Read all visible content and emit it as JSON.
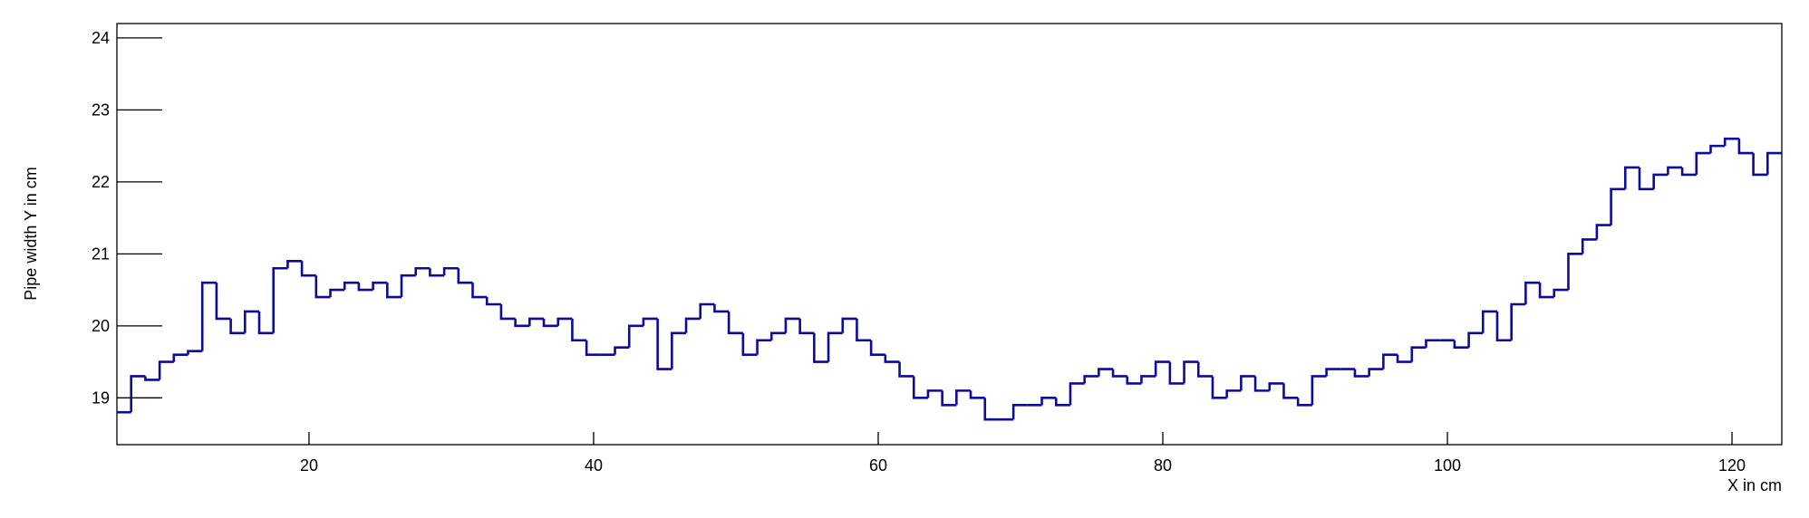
{
  "chart_data": {
    "type": "histogram",
    "xlabel": "X in cm",
    "ylabel": "Pipe width Y in cm",
    "color": "#0c0c9c",
    "xlim": [
      6.5,
      123.5
    ],
    "ylim": [
      18.35,
      24.2
    ],
    "xticks": [
      20,
      40,
      60,
      80,
      100,
      120
    ],
    "yticks": [
      19,
      20,
      21,
      22,
      23,
      24
    ],
    "bins": [
      6.5,
      7.5,
      8.5,
      9.5,
      10.5,
      11.5,
      12.5,
      13.5,
      14.5,
      15.5,
      16.5,
      17.5,
      18.5,
      19.5,
      20.5,
      21.5,
      22.5,
      23.5,
      24.5,
      25.5,
      26.5,
      27.5,
      28.5,
      29.5,
      30.5,
      31.5,
      32.5,
      33.5,
      34.5,
      35.5,
      36.5,
      37.5,
      38.5,
      39.5,
      40.5,
      41.5,
      42.5,
      43.5,
      44.5,
      45.5,
      46.5,
      47.5,
      48.5,
      49.5,
      50.5,
      51.5,
      52.5,
      53.5,
      54.5,
      55.5,
      56.5,
      57.5,
      58.5,
      59.5,
      60.5,
      61.5,
      62.5,
      63.5,
      64.5,
      65.5,
      66.5,
      67.5,
      68.5,
      69.5,
      70.5,
      71.5,
      72.5,
      73.5,
      74.5,
      75.5,
      76.5,
      77.5,
      78.5,
      79.5,
      80.5,
      81.5,
      82.5,
      83.5,
      84.5,
      85.5,
      86.5,
      87.5,
      88.5,
      89.5,
      90.5,
      91.5,
      92.5,
      93.5,
      94.5,
      95.5,
      96.5,
      97.5,
      98.5,
      99.5,
      100.5,
      101.5,
      102.5,
      103.5,
      104.5,
      105.5,
      106.5,
      107.5,
      108.5,
      109.5,
      110.5,
      111.5,
      112.5,
      113.5,
      114.5,
      115.5,
      116.5,
      117.5,
      118.5,
      119.5,
      120.5,
      121.5,
      122.5,
      123.5
    ],
    "values": [
      18.8,
      19.3,
      19.25,
      19.5,
      19.6,
      19.65,
      20.6,
      20.1,
      19.9,
      20.2,
      19.9,
      20.8,
      20.9,
      20.7,
      20.4,
      20.5,
      20.6,
      20.5,
      20.6,
      20.4,
      20.7,
      20.8,
      20.7,
      20.8,
      20.6,
      20.4,
      20.3,
      20.1,
      20.0,
      20.1,
      20.0,
      20.1,
      19.8,
      19.6,
      19.6,
      19.7,
      20.0,
      20.1,
      19.4,
      19.9,
      20.1,
      20.3,
      20.2,
      19.9,
      19.6,
      19.8,
      19.9,
      20.1,
      19.9,
      19.5,
      19.9,
      20.1,
      19.8,
      19.6,
      19.5,
      19.3,
      19.0,
      19.1,
      18.9,
      19.1,
      19.0,
      18.7,
      18.7,
      18.9,
      18.9,
      19.0,
      18.9,
      19.2,
      19.3,
      19.4,
      19.3,
      19.2,
      19.3,
      19.5,
      19.2,
      19.5,
      19.3,
      19.0,
      19.1,
      19.3,
      19.1,
      19.2,
      19.0,
      18.9,
      19.3,
      19.4,
      19.4,
      19.3,
      19.4,
      19.6,
      19.5,
      19.7,
      19.8,
      19.8,
      19.7,
      19.9,
      20.2,
      19.8,
      20.3,
      20.6,
      20.4,
      20.5,
      21.0,
      21.2,
      21.4,
      21.9,
      22.2,
      21.9,
      22.1,
      22.2,
      22.1,
      22.4,
      22.5,
      22.6,
      22.4,
      22.1,
      22.4
    ]
  }
}
